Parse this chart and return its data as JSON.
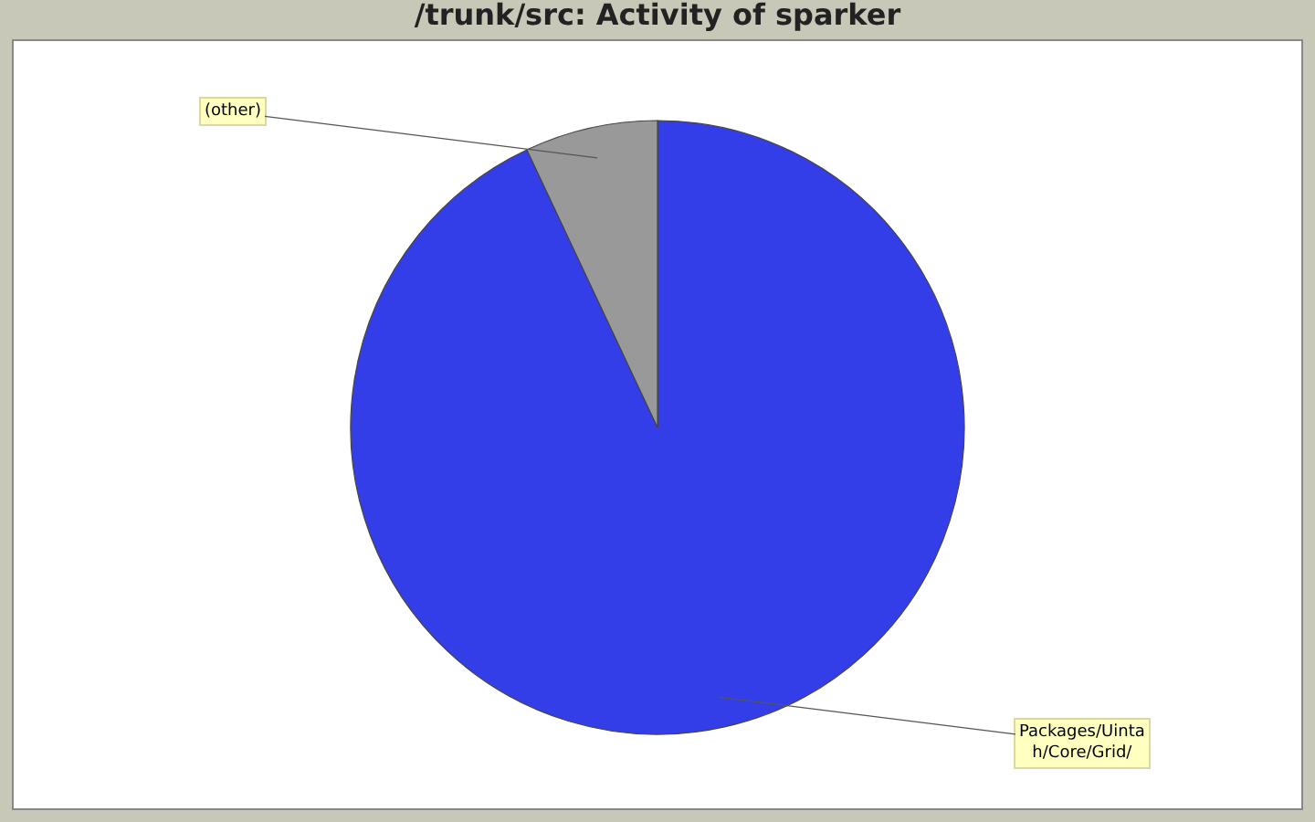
{
  "chart_data": {
    "type": "pie",
    "title": "/trunk/src: Activity of sparker",
    "categories": [
      "Packages/Uintah/Core/Grid/",
      "(other)"
    ],
    "values": [
      93,
      7
    ],
    "colors": [
      "#333ee8",
      "#999999"
    ]
  }
}
